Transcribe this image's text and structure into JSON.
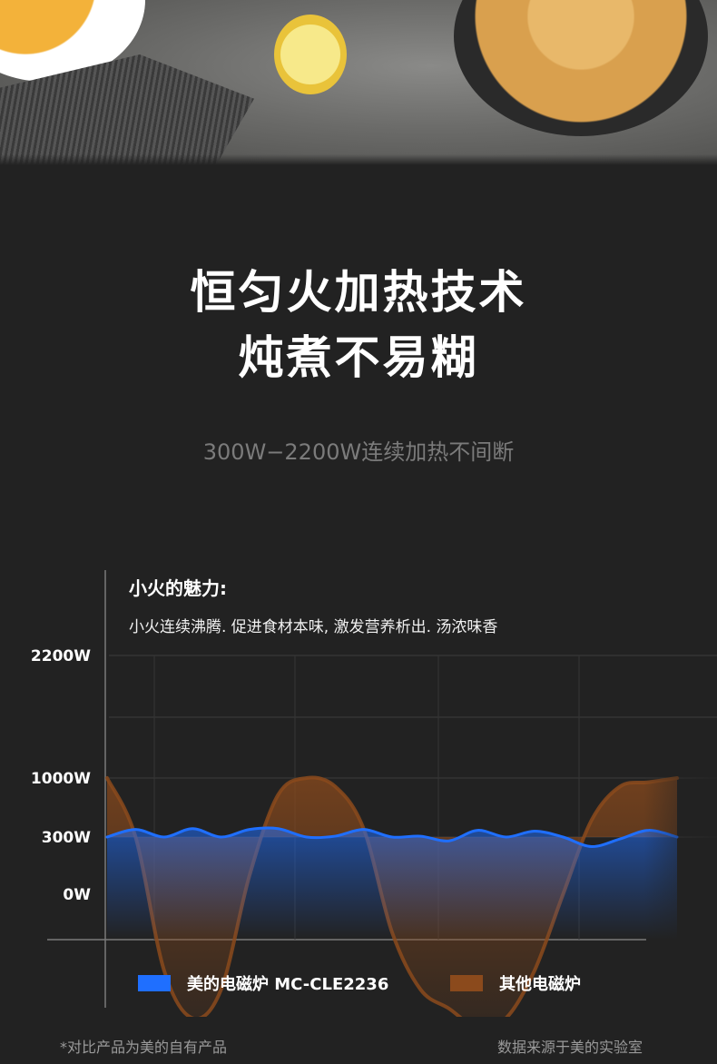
{
  "headline": {
    "line1": "恒匀火加热技术",
    "line2": "炖煮不易糊",
    "subline": "300W−2200W连续加热不间断"
  },
  "photo_icons": [
    "soup-bowl",
    "linen-cloth",
    "lemon-slice",
    "squid-dish-plate"
  ],
  "chart_data": {
    "type": "line",
    "title": "小火的魅力:",
    "subtitle": "小火连续沸腾. 促进食材本味, 激发营养析出. 汤浓味香",
    "xlabel": "",
    "ylabel": "",
    "y_ticks": [
      "2200W",
      "1000W",
      "300W",
      "0W"
    ],
    "ylim": [
      -700,
      2200
    ],
    "grid": true,
    "x": [
      0,
      1,
      2,
      3,
      4,
      5,
      6,
      7,
      8,
      9,
      10,
      11,
      12,
      13,
      14,
      15,
      16,
      17,
      18,
      19,
      20
    ],
    "series": [
      {
        "name": "美的电磁炉 MC-CLE2236",
        "color": "#1f6fff",
        "values": [
          300,
          390,
          300,
          400,
          300,
          390,
          400,
          300,
          310,
          390,
          300,
          310,
          280,
          380,
          300,
          370,
          300,
          250,
          290,
          380,
          300
        ]
      },
      {
        "name": "其他电磁炉",
        "color": "#8b4a1c",
        "values": [
          1000,
          300,
          -400,
          -650,
          -500,
          100,
          800,
          1000,
          900,
          400,
          -200,
          -500,
          -600,
          -700,
          -650,
          -400,
          0,
          500,
          900,
          950,
          1000
        ]
      }
    ],
    "legend_position": "bottom"
  },
  "footnote": {
    "left": "*对比产品为美的自有产品",
    "right": "数据来源于美的实验室"
  }
}
